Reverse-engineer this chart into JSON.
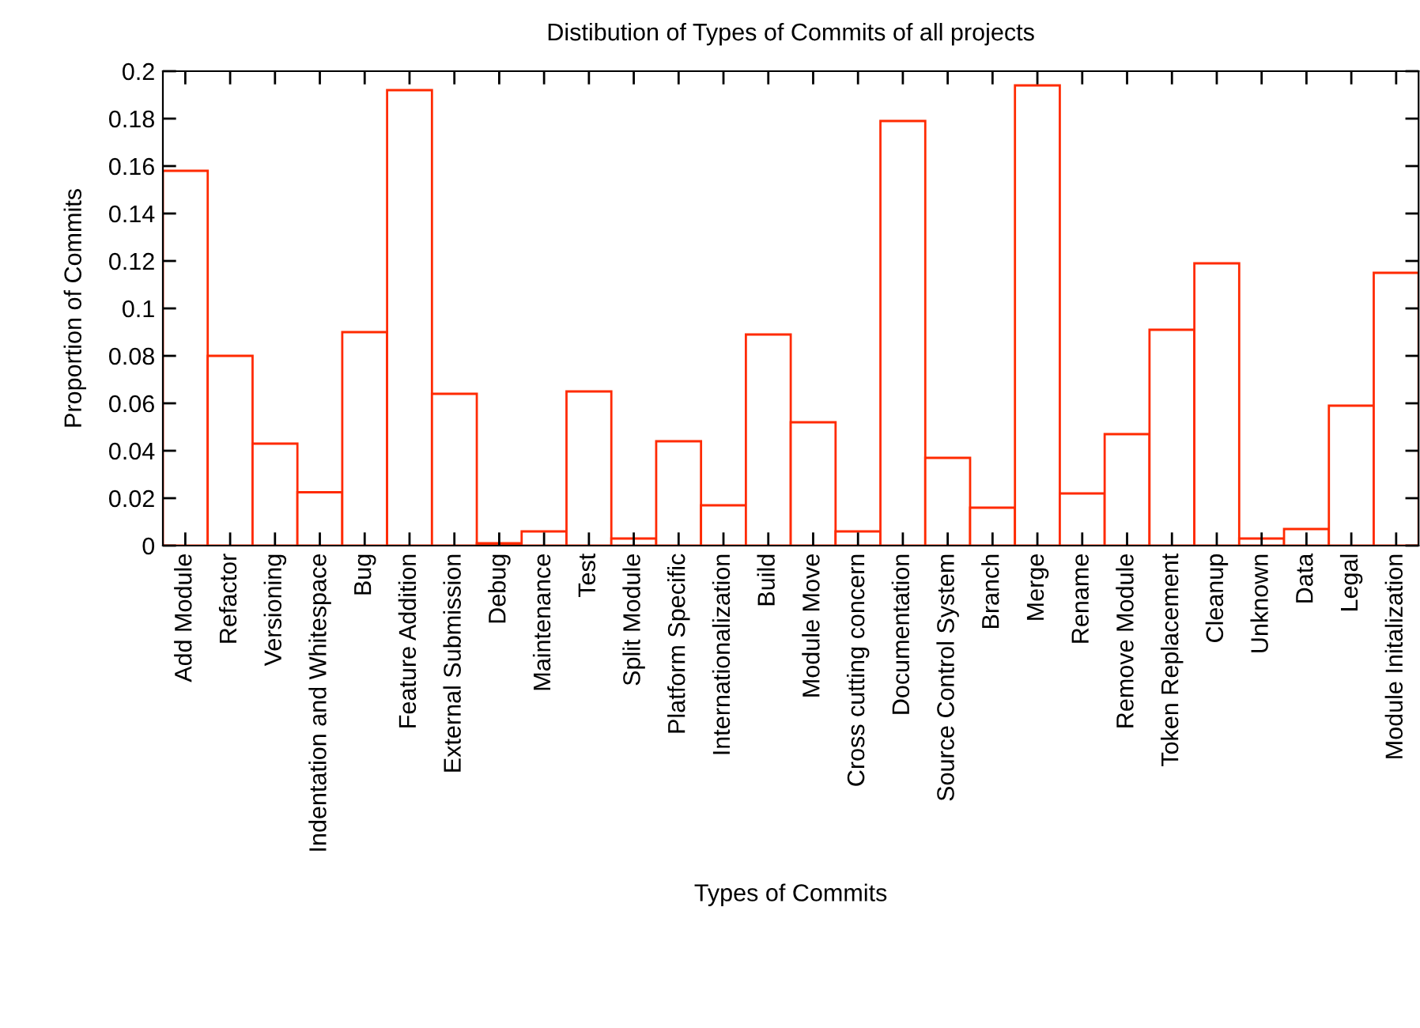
{
  "chart_data": {
    "type": "bar",
    "title": "Distibution of Types of Commits of all projects",
    "xlabel": "Types of Commits",
    "ylabel": "Proportion of Commits",
    "categories": [
      "Add Module",
      "Refactor",
      "Versioning",
      "Indentation and Whitespace",
      "Bug",
      "Feature Addition",
      "External Submission",
      "Debug",
      "Maintenance",
      "Test",
      "Split Module",
      "Platform Specific",
      "Internationalization",
      "Build",
      "Module Move",
      "Cross cutting concern",
      "Documentation",
      "Source Control System",
      "Branch",
      "Merge",
      "Rename",
      "Remove Module",
      "Token Replacement",
      "Cleanup",
      "Unknown",
      "Data",
      "Legal",
      "Module Initalization"
    ],
    "values": [
      0.158,
      0.08,
      0.043,
      0.0225,
      0.09,
      0.192,
      0.064,
      0.001,
      0.006,
      0.065,
      0.003,
      0.044,
      0.017,
      0.089,
      0.052,
      0.006,
      0.179,
      0.037,
      0.016,
      0.194,
      0.022,
      0.047,
      0.091,
      0.119,
      0.003,
      0.007,
      0.059,
      0.115
    ],
    "color": "#ff2a00",
    "ylim": [
      0,
      0.2
    ],
    "yticks": [
      0,
      0.02,
      0.04,
      0.06,
      0.08,
      0.1,
      0.12,
      0.14,
      0.16,
      0.18,
      0.2
    ],
    "grid": false,
    "legend": false
  }
}
